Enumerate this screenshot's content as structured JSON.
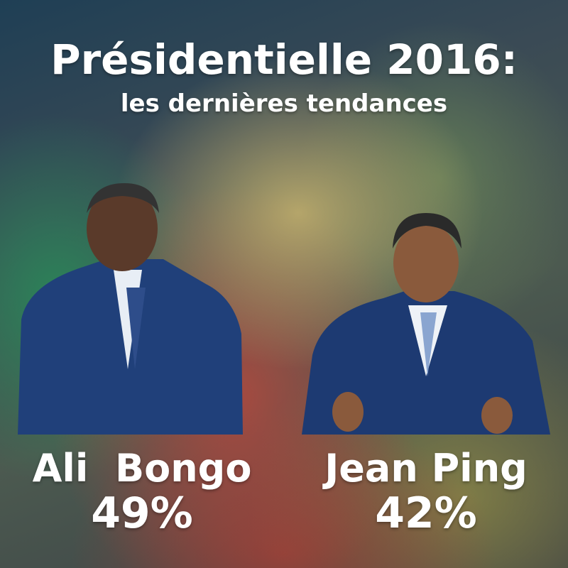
{
  "header": {
    "title": "Présidentielle 2016:",
    "subtitle": "les dernières tendances"
  },
  "candidates": [
    {
      "name": "Ali  Bongo",
      "result": "49%"
    },
    {
      "name": "Jean Ping",
      "result": "42%"
    }
  ]
}
